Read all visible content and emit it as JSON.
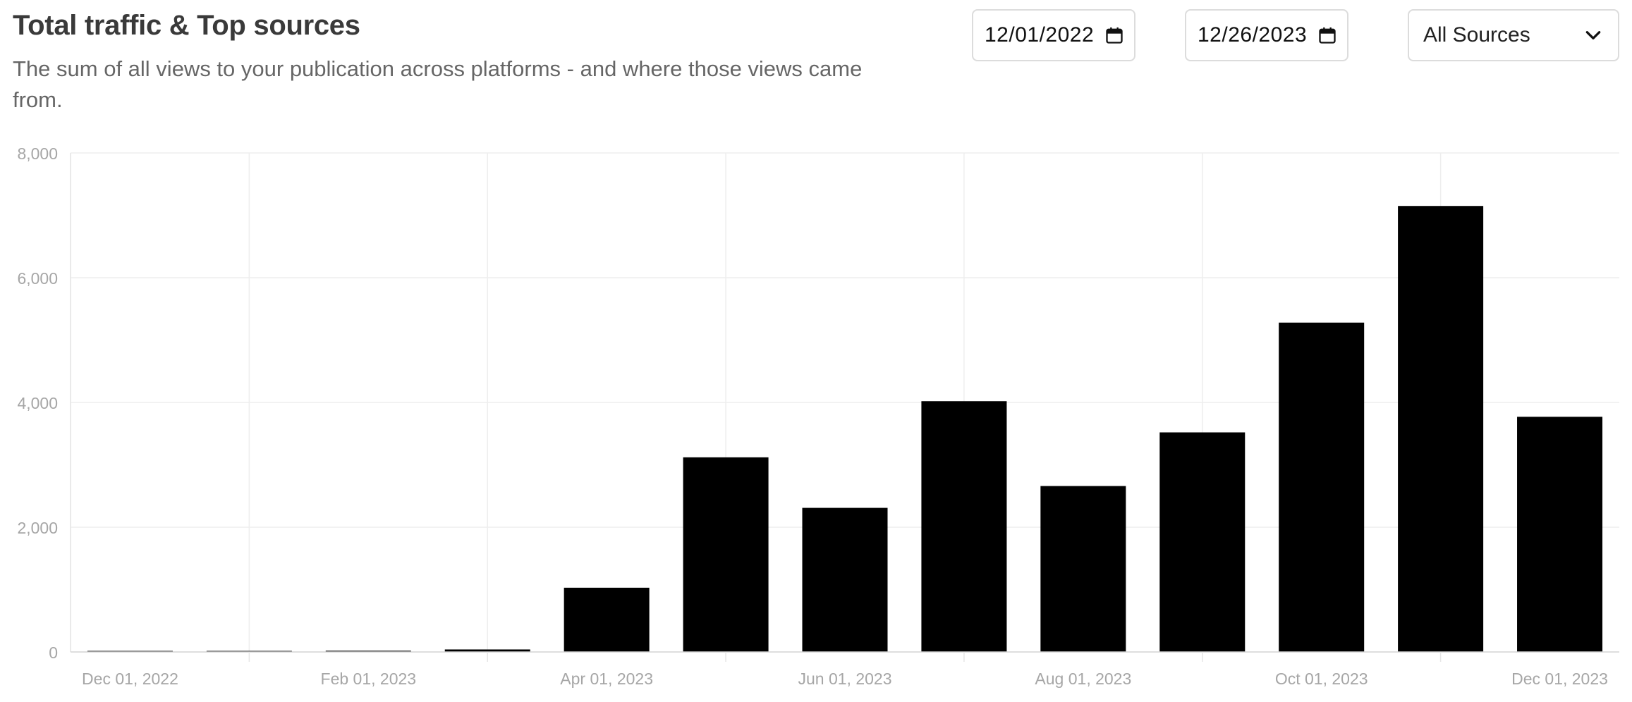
{
  "header": {
    "title": "Total traffic & Top sources",
    "subtitle": "The sum of all views to your publication across platforms - and where those views came from."
  },
  "filters": {
    "start_date": "12/01/2022",
    "end_date": "12/26/2023",
    "source_selected": "All Sources"
  },
  "colors": {
    "bar": "#000000",
    "grid": "#eeeeee",
    "axis_text": "#a6a6a6"
  },
  "chart_data": {
    "type": "bar",
    "title": "",
    "xlabel": "",
    "ylabel": "",
    "categories": [
      "Dec 2022",
      "Jan 2023",
      "Feb 2023",
      "Mar 2023",
      "Apr 2023",
      "May 2023",
      "Jun 2023",
      "Jul 2023",
      "Aug 2023",
      "Sep 2023",
      "Oct 2023",
      "Nov 2023",
      "Dec 2023"
    ],
    "x_tick_labels": [
      "Dec 01, 2022",
      "Feb 01, 2023",
      "Apr 01, 2023",
      "Jun 01, 2023",
      "Aug 01, 2023",
      "Oct 01, 2023",
      "Dec 01, 2023"
    ],
    "x_tick_category_index": [
      0,
      2,
      4,
      6,
      8,
      10,
      12
    ],
    "values": [
      5,
      10,
      20,
      40,
      1030,
      3120,
      2310,
      4020,
      2660,
      3520,
      5280,
      7150,
      3770
    ],
    "ylim": [
      0,
      8000
    ],
    "y_ticks": [
      0,
      2000,
      4000,
      6000,
      8000
    ],
    "y_tick_labels": [
      "0",
      "2,000",
      "4,000",
      "6,000",
      "8,000"
    ],
    "grid": true,
    "legend": "none"
  }
}
